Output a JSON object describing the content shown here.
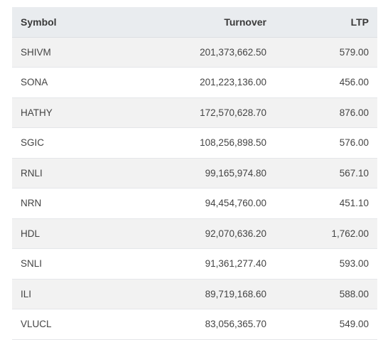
{
  "table": {
    "columns": [
      "Symbol",
      "Turnover",
      "LTP"
    ],
    "rows": [
      {
        "symbol": "SHIVM",
        "turnover": "201,373,662.50",
        "ltp": "579.00"
      },
      {
        "symbol": "SONA",
        "turnover": "201,223,136.00",
        "ltp": "456.00"
      },
      {
        "symbol": "HATHY",
        "turnover": "172,570,628.70",
        "ltp": "876.00"
      },
      {
        "symbol": "SGIC",
        "turnover": "108,256,898.50",
        "ltp": "576.00"
      },
      {
        "symbol": "RNLI",
        "turnover": "99,165,974.80",
        "ltp": "567.10"
      },
      {
        "symbol": "NRN",
        "turnover": "94,454,760.00",
        "ltp": "451.10"
      },
      {
        "symbol": "HDL",
        "turnover": "92,070,636.20",
        "ltp": "1,762.00"
      },
      {
        "symbol": "SNLI",
        "turnover": "91,361,277.40",
        "ltp": "593.00"
      },
      {
        "symbol": "ILI",
        "turnover": "89,719,168.60",
        "ltp": "588.00"
      },
      {
        "symbol": "VLUCL",
        "turnover": "83,056,365.70",
        "ltp": "549.00"
      }
    ]
  },
  "colors": {
    "header_bg": "#e9ecef",
    "row_odd_bg": "#f2f2f2",
    "row_even_bg": "#ffffff",
    "text": "#444444"
  }
}
